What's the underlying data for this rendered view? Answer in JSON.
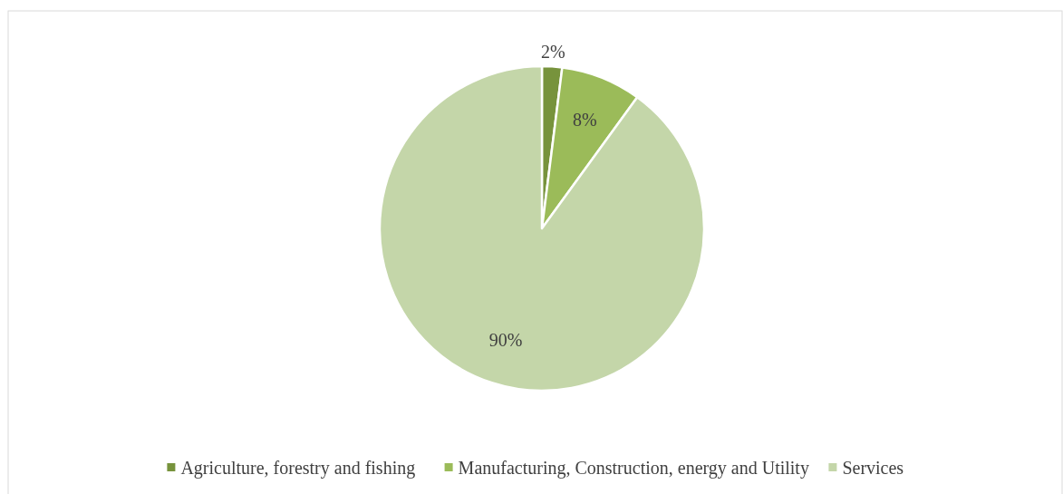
{
  "chart_data": {
    "type": "pie",
    "categories": [
      "Agriculture, forestry and fishing",
      "Manufacturing, Construction, energy and Utility",
      "Services"
    ],
    "values": [
      2,
      8,
      90
    ],
    "value_labels": [
      "2%",
      "8%",
      "90%"
    ],
    "colors": [
      "#77933c",
      "#9bbb59",
      "#c4d6a9"
    ],
    "legend": "bottom"
  }
}
